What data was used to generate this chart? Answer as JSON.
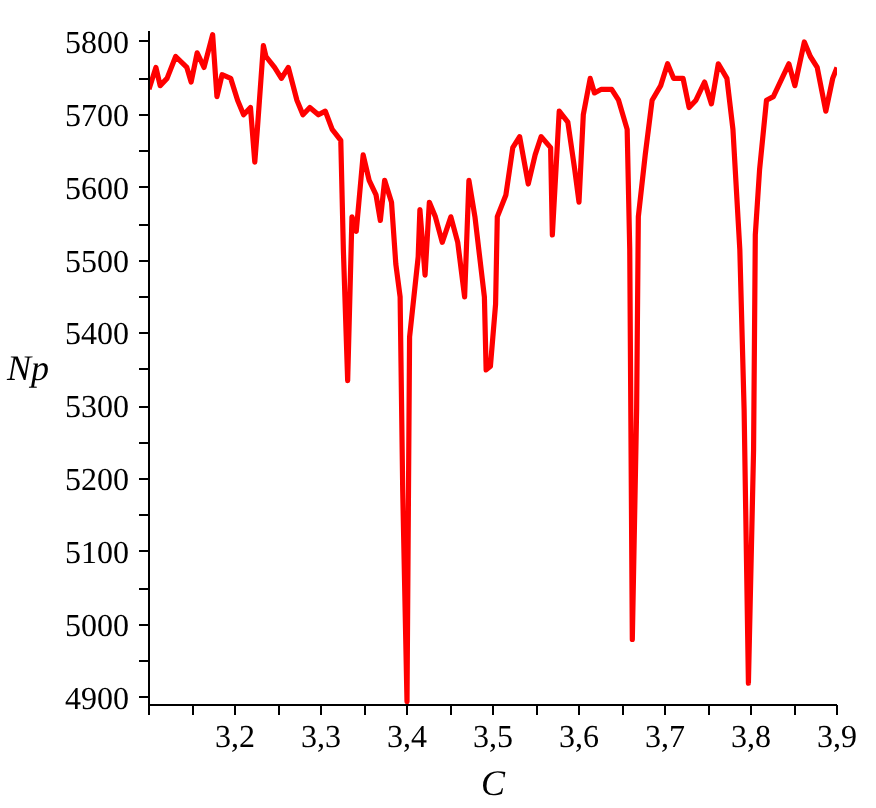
{
  "chart_data": {
    "type": "line",
    "xlabel": "C",
    "ylabel": "Np",
    "xlim": [
      3.1,
      3.9
    ],
    "ylim": [
      4890,
      5815
    ],
    "xticks": [
      {
        "value": 3.1,
        "label": null
      },
      {
        "value": 3.15,
        "label": null
      },
      {
        "value": 3.2,
        "label": "3,2"
      },
      {
        "value": 3.25,
        "label": null
      },
      {
        "value": 3.3,
        "label": "3,3"
      },
      {
        "value": 3.35,
        "label": null
      },
      {
        "value": 3.4,
        "label": "3,4"
      },
      {
        "value": 3.45,
        "label": null
      },
      {
        "value": 3.5,
        "label": "3,5"
      },
      {
        "value": 3.55,
        "label": null
      },
      {
        "value": 3.6,
        "label": "3,6"
      },
      {
        "value": 3.65,
        "label": null
      },
      {
        "value": 3.7,
        "label": "3,7"
      },
      {
        "value": 3.75,
        "label": null
      },
      {
        "value": 3.8,
        "label": "3,8"
      },
      {
        "value": 3.85,
        "label": null
      },
      {
        "value": 3.9,
        "label": "3,9"
      }
    ],
    "yticks": [
      4900,
      {
        "value": 4950,
        "label": null
      },
      5000,
      {
        "value": 5050,
        "label": null
      },
      5100,
      {
        "value": 5150,
        "label": null
      },
      5200,
      {
        "value": 5250,
        "label": null
      },
      5300,
      {
        "value": 5350,
        "label": null
      },
      5400,
      {
        "value": 5450,
        "label": null
      },
      5500,
      {
        "value": 5550,
        "label": null
      },
      5600,
      {
        "value": 5650,
        "label": null
      },
      5700,
      {
        "value": 5750,
        "label": null
      },
      5800
    ],
    "grid": false,
    "marker": "none",
    "line_style": "solid",
    "series": [
      {
        "color": "#ff0000",
        "x": [
          3.1,
          3.108,
          3.113,
          3.121,
          3.131,
          3.144,
          3.149,
          3.156,
          3.164,
          3.174,
          3.179,
          3.185,
          3.195,
          3.203,
          3.21,
          3.218,
          3.223,
          3.226,
          3.233,
          3.236,
          3.246,
          3.254,
          3.262,
          3.272,
          3.279,
          3.287,
          3.297,
          3.305,
          3.313,
          3.323,
          3.326,
          3.331,
          3.336,
          3.341,
          3.349,
          3.356,
          3.364,
          3.369,
          3.374,
          3.382,
          3.387,
          3.392,
          3.395,
          3.4,
          3.403,
          3.408,
          3.413,
          3.415,
          3.421,
          3.426,
          3.433,
          3.441,
          3.451,
          3.459,
          3.467,
          3.472,
          3.479,
          3.49,
          3.492,
          3.497,
          3.503,
          3.505,
          3.515,
          3.523,
          3.531,
          3.541,
          3.549,
          3.556,
          3.567,
          3.569,
          3.577,
          3.587,
          3.595,
          3.6,
          3.605,
          3.613,
          3.618,
          3.626,
          3.638,
          3.646,
          3.656,
          3.659,
          3.662,
          3.667,
          3.669,
          3.677,
          3.685,
          3.695,
          3.703,
          3.71,
          3.721,
          3.728,
          3.736,
          3.746,
          3.754,
          3.762,
          3.772,
          3.779,
          3.787,
          3.792,
          3.797,
          3.803,
          3.805,
          3.81,
          3.818,
          3.826,
          3.836,
          3.844,
          3.851,
          3.862,
          3.869,
          3.877,
          3.887,
          3.895,
          3.9
        ],
        "values": [
          5735,
          5765,
          5740,
          5750,
          5780,
          5765,
          5745,
          5785,
          5765,
          5810,
          5725,
          5755,
          5750,
          5720,
          5700,
          5710,
          5635,
          5680,
          5795,
          5780,
          5765,
          5750,
          5765,
          5720,
          5700,
          5710,
          5700,
          5705,
          5680,
          5665,
          5515,
          5335,
          5560,
          5540,
          5645,
          5610,
          5590,
          5555,
          5610,
          5580,
          5495,
          5450,
          5185,
          4895,
          5395,
          5450,
          5505,
          5570,
          5480,
          5580,
          5560,
          5525,
          5560,
          5525,
          5450,
          5610,
          5560,
          5450,
          5350,
          5355,
          5440,
          5560,
          5590,
          5655,
          5670,
          5605,
          5645,
          5670,
          5655,
          5535,
          5705,
          5690,
          5625,
          5580,
          5700,
          5750,
          5730,
          5735,
          5735,
          5720,
          5680,
          5515,
          4980,
          5295,
          5560,
          5645,
          5720,
          5740,
          5770,
          5750,
          5750,
          5710,
          5720,
          5745,
          5715,
          5770,
          5750,
          5680,
          5515,
          5295,
          4920,
          5240,
          5535,
          5625,
          5720,
          5725,
          5750,
          5770,
          5740,
          5800,
          5780,
          5765,
          5705,
          5750,
          5765
        ]
      }
    ]
  }
}
